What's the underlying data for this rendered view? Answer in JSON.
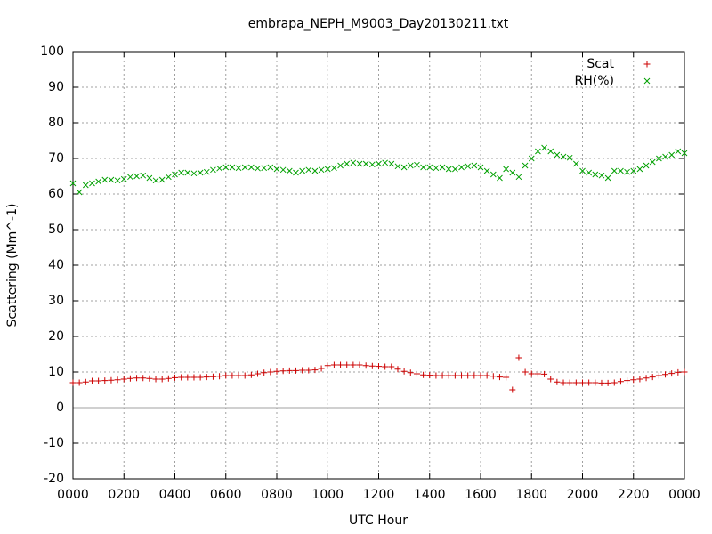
{
  "chart_data": {
    "type": "scatter",
    "title": "embrapa_NEPH_M9003_Day20130211.txt",
    "xlabel": "UTC Hour",
    "ylabel": "Scattering (Mm^-1)",
    "xlim": [
      0,
      24
    ],
    "ylim": [
      -20,
      100
    ],
    "xticks": [
      {
        "value": 0,
        "label": "0000"
      },
      {
        "value": 2,
        "label": "0200"
      },
      {
        "value": 4,
        "label": "0400"
      },
      {
        "value": 6,
        "label": "0600"
      },
      {
        "value": 8,
        "label": "0800"
      },
      {
        "value": 10,
        "label": "1000"
      },
      {
        "value": 12,
        "label": "1200"
      },
      {
        "value": 14,
        "label": "1400"
      },
      {
        "value": 16,
        "label": "1600"
      },
      {
        "value": 18,
        "label": "1800"
      },
      {
        "value": 20,
        "label": "2000"
      },
      {
        "value": 22,
        "label": "2200"
      },
      {
        "value": 24,
        "label": "0000"
      }
    ],
    "yticks": [
      -20,
      -10,
      0,
      10,
      20,
      30,
      40,
      50,
      60,
      70,
      80,
      90,
      100
    ],
    "grid": true,
    "legend": "top-right",
    "x": [
      0,
      0.25,
      0.5,
      0.75,
      1,
      1.25,
      1.5,
      1.75,
      2,
      2.25,
      2.5,
      2.75,
      3,
      3.25,
      3.5,
      3.75,
      4,
      4.25,
      4.5,
      4.75,
      5,
      5.25,
      5.5,
      5.75,
      6,
      6.25,
      6.5,
      6.75,
      7,
      7.25,
      7.5,
      7.75,
      8,
      8.25,
      8.5,
      8.75,
      9,
      9.25,
      9.5,
      9.75,
      10,
      10.25,
      10.5,
      10.75,
      11,
      11.25,
      11.5,
      11.75,
      12,
      12.25,
      12.5,
      12.75,
      13,
      13.25,
      13.5,
      13.75,
      14,
      14.25,
      14.5,
      14.75,
      15,
      15.25,
      15.5,
      15.75,
      16,
      16.25,
      16.5,
      16.75,
      17,
      17.25,
      17.5,
      17.75,
      18,
      18.25,
      18.5,
      18.75,
      19,
      19.25,
      19.5,
      19.75,
      20,
      20.25,
      20.5,
      20.75,
      21,
      21.25,
      21.5,
      21.75,
      22,
      22.25,
      22.5,
      22.75,
      23,
      23.25,
      23.5,
      23.75,
      24
    ],
    "series": [
      {
        "name": "Scat",
        "color": "#cc0000",
        "marker": "plus",
        "values": [
          7,
          7,
          7.2,
          7.5,
          7.5,
          7.6,
          7.7,
          7.8,
          8,
          8.2,
          8.3,
          8.3,
          8.2,
          8,
          8,
          8.2,
          8.4,
          8.5,
          8.5,
          8.5,
          8.5,
          8.6,
          8.7,
          8.8,
          9,
          9,
          9,
          9,
          9.2,
          9.5,
          9.8,
          10,
          10.2,
          10.3,
          10.4,
          10.4,
          10.5,
          10.5,
          10.6,
          11,
          11.8,
          12,
          12,
          12,
          12,
          12,
          11.8,
          11.7,
          11.6,
          11.5,
          11.5,
          10.8,
          10.2,
          9.8,
          9.5,
          9.2,
          9.1,
          9,
          9,
          9,
          9,
          9,
          9,
          9,
          9,
          9,
          8.8,
          8.6,
          8.5,
          5,
          14,
          10,
          9.5,
          9.5,
          9.4,
          8,
          7.2,
          7,
          7,
          7,
          7,
          7,
          7,
          6.9,
          6.9,
          7,
          7.3,
          7.6,
          7.8,
          8,
          8.3,
          8.6,
          9,
          9.3,
          9.6,
          9.9,
          10
        ]
      },
      {
        "name": "RH(%)",
        "color": "#00a000",
        "marker": "cross",
        "values": [
          63,
          60.5,
          62.5,
          63,
          63.5,
          64,
          64,
          63.8,
          64.2,
          64.8,
          65,
          65.2,
          64.5,
          63.8,
          64,
          64.8,
          65.5,
          66,
          66,
          65.8,
          66,
          66.2,
          66.8,
          67.2,
          67.5,
          67.5,
          67.3,
          67.5,
          67.5,
          67.2,
          67.3,
          67.5,
          67,
          66.8,
          66.5,
          66,
          66.5,
          66.8,
          66.5,
          66.8,
          67,
          67.3,
          68,
          68.5,
          68.8,
          68.5,
          68.5,
          68.3,
          68.5,
          68.8,
          68.5,
          67.8,
          67.5,
          68,
          68.2,
          67.5,
          67.5,
          67.3,
          67.5,
          67,
          67,
          67.5,
          67.8,
          68,
          67.5,
          66.5,
          65.5,
          64.5,
          67,
          66,
          64.8,
          68,
          70,
          72,
          73,
          72,
          71,
          70.5,
          70.2,
          68.5,
          66.5,
          66,
          65.5,
          65.2,
          64.5,
          66.5,
          66.5,
          66.2,
          66.5,
          67,
          68,
          69,
          70,
          70.5,
          71,
          72,
          71.5
        ]
      }
    ]
  }
}
